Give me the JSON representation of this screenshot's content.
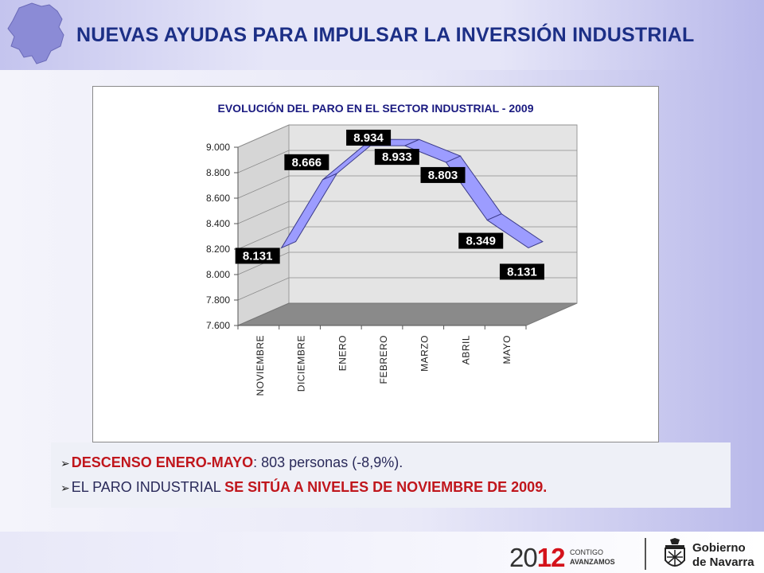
{
  "header": {
    "title": "NUEVAS AYUDAS PARA IMPULSAR LA INVERSIÓN INDUSTRIAL"
  },
  "chart_data": {
    "type": "line",
    "title": "EVOLUCIÓN DEL PARO EN EL SECTOR INDUSTRIAL - 2009",
    "categories": [
      "NOVIEMBRE",
      "DICIEMBRE",
      "ENERO",
      "FEBRERO",
      "MARZO",
      "ABRIL",
      "MAYO"
    ],
    "values": [
      8131,
      8666,
      8934,
      8933,
      8803,
      8349,
      8131
    ],
    "data_labels": [
      "8.131",
      "8.666",
      "8.934",
      "8.933",
      "8.803",
      "8.349",
      "8.131"
    ],
    "yticks": [
      "7.600",
      "7.800",
      "8.000",
      "8.200",
      "8.400",
      "8.600",
      "8.800",
      "9.000"
    ],
    "ylim": [
      7600,
      9000
    ],
    "grid": true,
    "line_color": "#9c9cff",
    "floor_color": "#8a8a8a"
  },
  "bullets": {
    "b1_em": "DESCENSO ENERO-MAYO",
    "b1_rest": ": 803 personas (-8,9%).",
    "b2_plain": "EL PARO INDUSTRIAL ",
    "b2_em": "SE SITÚA A NIVELES DE NOVIEMBRE  DE 2009."
  },
  "footer": {
    "year_a": "20",
    "year_b": "12",
    "slogan_1": "CONTIGO",
    "slogan_2": "AVANZAMOS",
    "gov_1": "Gobierno",
    "gov_2": "de Navarra"
  }
}
